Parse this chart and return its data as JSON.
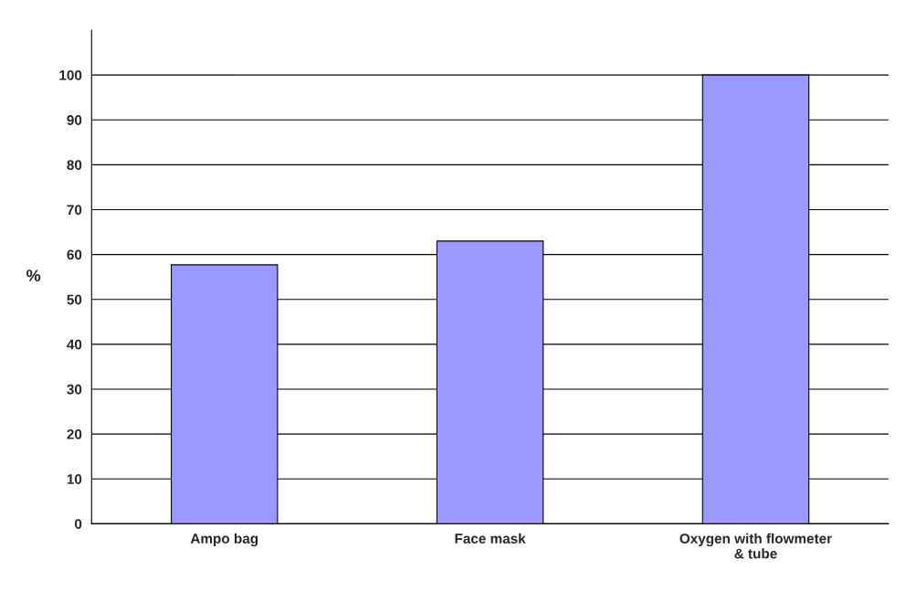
{
  "chart_data": {
    "type": "bar",
    "ylabel": "%",
    "categories": [
      "Ampo bag",
      "Face mask",
      "Oxygen with flowmeter\n& tube"
    ],
    "values": [
      57.7,
      63,
      100
    ],
    "color": "#9999ff",
    "ylim": [
      0,
      110
    ],
    "yticks": [
      0,
      10,
      20,
      30,
      40,
      50,
      60,
      70,
      80,
      90,
      100
    ],
    "grid": "y"
  }
}
